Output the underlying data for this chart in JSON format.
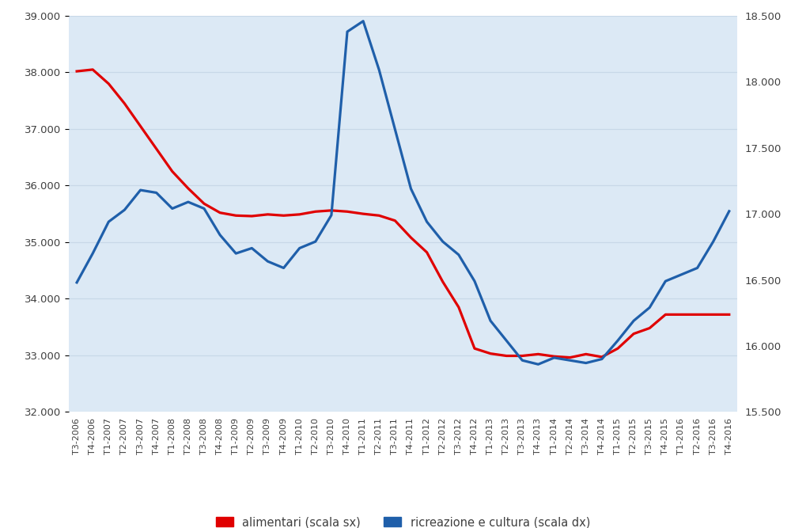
{
  "labels": [
    "T3-2006",
    "T4-2006",
    "T1-2007",
    "T2-2007",
    "T3-2007",
    "T4-2007",
    "T1-2008",
    "T2-2008",
    "T3-2008",
    "T4-2008",
    "T1-2009",
    "T2-2009",
    "T3-2009",
    "T4-2009",
    "T1-2010",
    "T2-2010",
    "T3-2010",
    "T4-2010",
    "T1-2011",
    "T2-2011",
    "T3-2011",
    "T4-2011",
    "T1-2012",
    "T2-2012",
    "T3-2012",
    "T4-2012",
    "T1-2013",
    "T2-2013",
    "T3-2013",
    "T4-2013",
    "T1-2014",
    "T2-2014",
    "T3-2014",
    "T4-2014",
    "T1-2015",
    "T2-2015",
    "T3-2015",
    "T4-2015",
    "T1-2016",
    "T2-2016",
    "T3-2016",
    "T4-2016"
  ],
  "alimentari": [
    38020,
    38050,
    37800,
    37450,
    37050,
    36650,
    36250,
    35950,
    35680,
    35520,
    35470,
    35460,
    35490,
    35470,
    35490,
    35540,
    35560,
    35540,
    35500,
    35470,
    35380,
    35080,
    34820,
    34300,
    33850,
    33120,
    33030,
    32990,
    32990,
    33020,
    32980,
    32960,
    33020,
    32970,
    33120,
    33380,
    33480,
    33720,
    33720,
    33720,
    33720,
    33720
  ],
  "ricreazione": [
    16480,
    16700,
    16940,
    17030,
    17180,
    17160,
    17040,
    17090,
    17040,
    16840,
    16700,
    16740,
    16640,
    16590,
    16740,
    16790,
    16990,
    18380,
    18460,
    18090,
    17640,
    17190,
    16940,
    16790,
    16690,
    16490,
    16190,
    16040,
    15890,
    15860,
    15910,
    15890,
    15870,
    15900,
    16040,
    16190,
    16290,
    16490,
    16540,
    16590,
    16790,
    17020
  ],
  "left_ylim": [
    32000,
    39000
  ],
  "right_ylim": [
    15500,
    18500
  ],
  "left_yticks": [
    32000,
    33000,
    34000,
    35000,
    36000,
    37000,
    38000,
    39000
  ],
  "right_yticks": [
    15500,
    16000,
    16500,
    17000,
    17500,
    18000,
    18500
  ],
  "alimentari_color": "#e00000",
  "ricreazione_color": "#1f5faa",
  "plot_bg_color": "#dce9f5",
  "fig_bg_color": "#ffffff",
  "grid_color": "#c8d8e8",
  "legend_alimentari": "alimentari (scala sx)",
  "legend_ricreazione": "ricreazione e cultura (scala dx)",
  "line_width": 2.3,
  "tick_label_color": "#404040",
  "tick_label_size": 9.5
}
